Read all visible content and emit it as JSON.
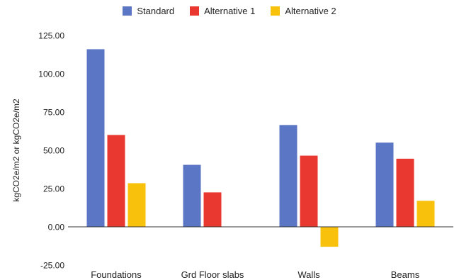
{
  "chart_data": {
    "type": "bar",
    "title": "",
    "xlabel": "",
    "ylabel": "kgCO2e/m2 or kgCO2e/m2",
    "categories": [
      "Foundations",
      "Grd Floor slabs",
      "Walls",
      "Beams"
    ],
    "series": [
      {
        "name": "Standard",
        "color": "#5b76c4",
        "values": [
          116,
          40.5,
          66.5,
          55
        ]
      },
      {
        "name": "Alternative 1",
        "color": "#e8382f",
        "values": [
          60,
          22.5,
          46.5,
          44.5
        ]
      },
      {
        "name": "Alternative 2",
        "color": "#f7c10c",
        "values": [
          28.5,
          0,
          -13,
          17
        ]
      }
    ],
    "ylim": [
      -25,
      125
    ],
    "yticks": [
      "125.00",
      "100.00",
      "75.00",
      "50.00",
      "25.00",
      "0.00",
      "-25.00"
    ],
    "ytick_values": [
      125,
      100,
      75,
      50,
      25,
      0,
      -25
    ],
    "grid": false,
    "legend_position": "top-center"
  }
}
